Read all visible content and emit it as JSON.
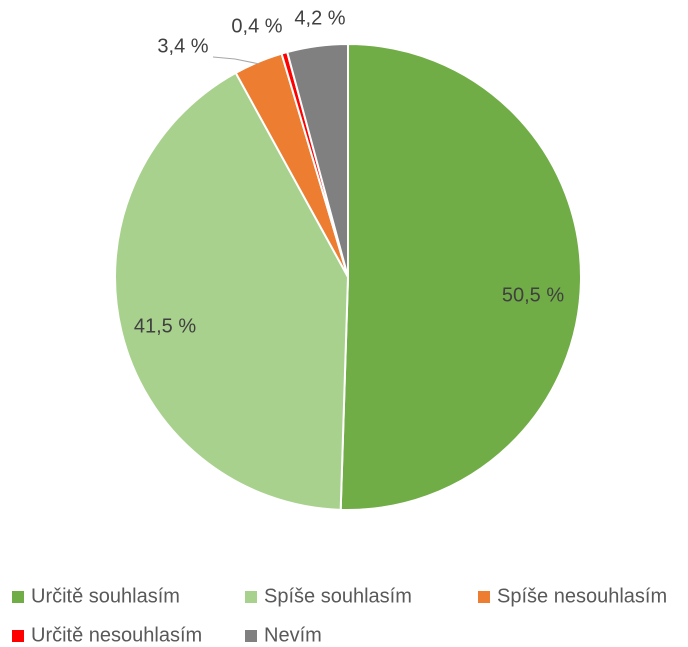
{
  "chart_data": {
    "type": "pie",
    "categories": [
      "Určitě souhlasím",
      "Spíše souhlasím",
      "Spíše nesouhlasím",
      "Určitě nesouhlasím",
      "Nevím"
    ],
    "values": [
      50.5,
      41.5,
      3.4,
      0.4,
      4.2
    ],
    "value_labels": [
      "50,5 %",
      "41,5 %",
      "3,4 %",
      "0,4 %",
      "4,2 %"
    ],
    "colors": [
      "#70ad47",
      "#a9d18e",
      "#ed7d31",
      "#ff0000",
      "#808080"
    ],
    "legend": "bottom"
  }
}
